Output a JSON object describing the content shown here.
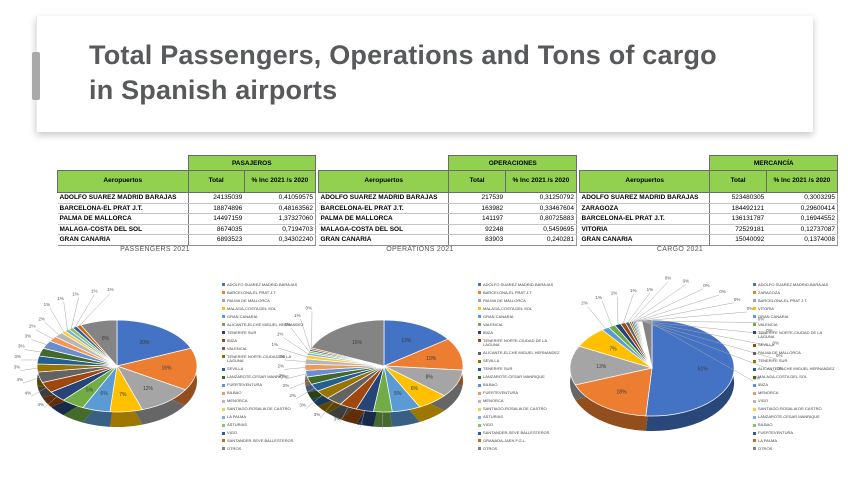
{
  "slide": {
    "title": "Total Passengers, Operations and Tons of cargo in Spanish airports"
  },
  "tables": [
    {
      "group_header": "PASAJEROS",
      "col_headers": {
        "airport": "Aeropuertos",
        "total": "Total",
        "inc": "% Inc 2021 /s 2020"
      },
      "rows": [
        {
          "airport": "ADOLFO SUAREZ MADRID BARAJAS",
          "total": "24135039",
          "inc": "0,41059575"
        },
        {
          "airport": "BARCELONA-EL PRAT J.T.",
          "total": "18874896",
          "inc": "0,48163562"
        },
        {
          "airport": "PALMA DE MALLORCA",
          "total": "14497159",
          "inc": "1,37327060"
        },
        {
          "airport": "MALAGA-COSTA DEL SOL",
          "total": "8674035",
          "inc": "0,7194703"
        },
        {
          "airport": "GRAN CANARIA",
          "total": "6893523",
          "inc": "0,34302240"
        }
      ]
    },
    {
      "group_header": "OPERACIONES",
      "col_headers": {
        "airport": "Aeropuertos",
        "total": "Total",
        "inc": "% Inc 2021 /s 2020"
      },
      "rows": [
        {
          "airport": "ADOLFO SUAREZ MADRID BARAJAS",
          "total": "217539",
          "inc": "0,31250792"
        },
        {
          "airport": "BARCELONA-EL PRAT J.T.",
          "total": "163982",
          "inc": "0,33467604"
        },
        {
          "airport": "PALMA DE MALLORCA",
          "total": "141197",
          "inc": "0,80725883"
        },
        {
          "airport": "MALAGA-COSTA DEL SOL",
          "total": "92248",
          "inc": "0,5459695"
        },
        {
          "airport": "GRAN CANARIA",
          "total": "83903",
          "inc": "0,240281"
        }
      ]
    },
    {
      "group_header": "MERCANCÍA",
      "col_headers": {
        "airport": "Aeropuertos",
        "total": "Total",
        "inc": "% Inc 2021 /s 2020"
      },
      "rows": [
        {
          "airport": "ADOLFO SUAREZ MADRID BARAJAS",
          "total": "523480305",
          "inc": "0,3003295"
        },
        {
          "airport": "ZARAGOZA",
          "total": "184492121",
          "inc": "0,29600414"
        },
        {
          "airport": "BARCELONA-EL PRAT J.T.",
          "total": "136131787",
          "inc": "0,16944552"
        },
        {
          "airport": "VITORIA",
          "total": "72529181",
          "inc": "0,12737087"
        },
        {
          "airport": "GRAN CANARIA",
          "total": "15040092",
          "inc": "0,1374008"
        }
      ]
    }
  ],
  "palette": [
    "#4472C4",
    "#ED7D31",
    "#A5A5A5",
    "#FFC000",
    "#5B9BD5",
    "#70AD47",
    "#264478",
    "#9E480E",
    "#636363",
    "#997300",
    "#255E91",
    "#43682B",
    "#698ED0",
    "#F1975A",
    "#B7B7B7",
    "#FFCD33",
    "#7CAFDD",
    "#8CC168",
    "#335AA1",
    "#CB6A15",
    "#848484"
  ],
  "chart_data": [
    {
      "type": "pie",
      "title": "PASSENGERS 2021",
      "unit": "percent",
      "legend_position": "right",
      "labels": "percent",
      "slices": [
        {
          "label": "ADOLFO SUAREZ MADRID-BARAJAS",
          "value": 20,
          "pct": "20%"
        },
        {
          "label": "BARCELONA-EL PRAT J.T.",
          "value": 16,
          "pct": "16%"
        },
        {
          "label": "PALMA DE MALLORCA",
          "value": 12,
          "pct": "12%"
        },
        {
          "label": "MALAGA-COSTA DEL SOL",
          "value": 7,
          "pct": "7%"
        },
        {
          "label": "GRAN CANARIA",
          "value": 6,
          "pct": "6%"
        },
        {
          "label": "ALICANTE-ELCHE MIGUEL HERNANDEZ",
          "value": 5,
          "pct": "5%"
        },
        {
          "label": "TENERIFE SUR",
          "value": 4,
          "pct": "4%"
        },
        {
          "label": "IBIZA",
          "value": 4,
          "pct": "4%"
        },
        {
          "label": "VALENCIA",
          "value": 4,
          "pct": "4%"
        },
        {
          "label": "TENERIFE NORTE-CIUDAD DE LA LAGUNA",
          "value": 3,
          "pct": "3%"
        },
        {
          "label": "SEVILLA",
          "value": 3,
          "pct": "3%"
        },
        {
          "label": "LANZAROTE-CESAR MANRIQUE",
          "value": 3,
          "pct": "3%"
        },
        {
          "label": "FUERTEVENTURA",
          "value": 3,
          "pct": "3%"
        },
        {
          "label": "BILBAO",
          "value": 2,
          "pct": "2%"
        },
        {
          "label": "MENORCA",
          "value": 2,
          "pct": "2%"
        },
        {
          "label": "SANTIAGO-ROSALIA DE CASTRO",
          "value": 1,
          "pct": "1%"
        },
        {
          "label": "LA PALMA",
          "value": 1,
          "pct": "1%"
        },
        {
          "label": "ASTURIAS",
          "value": 1,
          "pct": "1%"
        },
        {
          "label": "VIGO",
          "value": 1,
          "pct": "1%"
        },
        {
          "label": "SANTANDER-SEVE BALLESTEROS",
          "value": 1,
          "pct": "1%"
        },
        {
          "label": "OTROS",
          "value": 8,
          "pct": "8%"
        }
      ]
    },
    {
      "type": "pie",
      "title": "OPERATIONS 2021",
      "unit": "percent",
      "legend_position": "right",
      "labels": "percent",
      "slices": [
        {
          "label": "ADOLFO SUAREZ MADRID-BARAJAS",
          "value": 13,
          "pct": "13%"
        },
        {
          "label": "BARCELONA-EL PRAT J.T.",
          "value": 9.8,
          "pct": "10%"
        },
        {
          "label": "PALMA DE MALLORCA",
          "value": 8.4,
          "pct": "8%"
        },
        {
          "label": "MALAGA-COSTA DEL SOL",
          "value": 5.5,
          "pct": "6%"
        },
        {
          "label": "GRAN CANARIA",
          "value": 5,
          "pct": "5%"
        },
        {
          "label": "VALENCIA",
          "value": 3.3,
          "pct": "3%"
        },
        {
          "label": "IBIZA",
          "value": 3.1,
          "pct": "3%"
        },
        {
          "label": "TENERIFE NORTE-CIUDAD DE LA LAGUNA",
          "value": 3.1,
          "pct": "3%"
        },
        {
          "label": "ALICANTE-ELCHE MIGUEL HERNANDEZ",
          "value": 2.9,
          "pct": "3%"
        },
        {
          "label": "SEVILLA",
          "value": 2.7,
          "pct": "3%"
        },
        {
          "label": "TENERIFE SUR",
          "value": 2.3,
          "pct": "2%"
        },
        {
          "label": "LANZAROTE-CESAR MANRIQUE",
          "value": 2.3,
          "pct": "2%"
        },
        {
          "label": "BILBAO",
          "value": 2,
          "pct": "2%"
        },
        {
          "label": "FUERTEVENTURA",
          "value": 1.8,
          "pct": "2%"
        },
        {
          "label": "MENORCA",
          "value": 1.7,
          "pct": "2%"
        },
        {
          "label": "SANTIAGO-ROSALIA DE CASTRO",
          "value": 1.1,
          "pct": "1%"
        },
        {
          "label": "ASTURIAS",
          "value": 0.7,
          "pct": "1%"
        },
        {
          "label": "VIGO",
          "value": 0.6,
          "pct": "1%"
        },
        {
          "label": "SANTANDER-SEVE BALLESTEROS",
          "value": 0.5,
          "pct": "1%"
        },
        {
          "label": "GRANADA-JAEN F.G.L.",
          "value": 0.5,
          "pct": "0%"
        },
        {
          "label": "OTROS",
          "value": 16,
          "pct": "16%"
        }
      ]
    },
    {
      "type": "pie",
      "title": "CARGO 2021",
      "unit": "percent",
      "legend_position": "right",
      "labels": "percent",
      "slices": [
        {
          "label": "ADOLFO SUAREZ MADRID-BARAJAS",
          "value": 51.3,
          "pct": "51%"
        },
        {
          "label": "ZARAGOZA",
          "value": 18.1,
          "pct": "18%"
        },
        {
          "label": "BARCELONA-EL PRAT J.T.",
          "value": 13.3,
          "pct": "13%"
        },
        {
          "label": "VITORIA",
          "value": 7.1,
          "pct": "7%"
        },
        {
          "label": "GRAN CANARIA",
          "value": 1.5,
          "pct": "2%"
        },
        {
          "label": "VALENCIA",
          "value": 1.4,
          "pct": "1%"
        },
        {
          "label": "TENERIFE NORTE-CIUDAD DE LA LAGUNA",
          "value": 1.2,
          "pct": "1%"
        },
        {
          "label": "SEVILLA",
          "value": 1.0,
          "pct": "1%"
        },
        {
          "label": "PALMA DE MALLORCA",
          "value": 0.8,
          "pct": "1%"
        },
        {
          "label": "TENERIFE SUR",
          "value": 0.4,
          "pct": "0%"
        },
        {
          "label": "ALICANTE-ELCHE MIGUEL HERNANDEZ",
          "value": 0.35,
          "pct": "0%"
        },
        {
          "label": "MALAGA-COSTA DEL SOL",
          "value": 0.3,
          "pct": "0%"
        },
        {
          "label": "IBIZA",
          "value": 0.3,
          "pct": "0%"
        },
        {
          "label": "MENORCA",
          "value": 0.25,
          "pct": "0%"
        },
        {
          "label": "VIGO",
          "value": 0.2,
          "pct": "0%"
        },
        {
          "label": "SANTIAGO-ROSALIA DE CASTRO",
          "value": 0.2,
          "pct": "0%"
        },
        {
          "label": "LANZAROTE-CESAR MANRIQUE",
          "value": 0.15,
          "pct": "0%"
        },
        {
          "label": "BILBAO",
          "value": 0.15,
          "pct": "0%"
        },
        {
          "label": "FUERTEVENTURA",
          "value": 0.1,
          "pct": "0%"
        },
        {
          "label": "LA PALMA",
          "value": 0.1,
          "pct": "0%"
        },
        {
          "label": "OTROS",
          "value": 2,
          "pct": "2%"
        }
      ]
    }
  ]
}
